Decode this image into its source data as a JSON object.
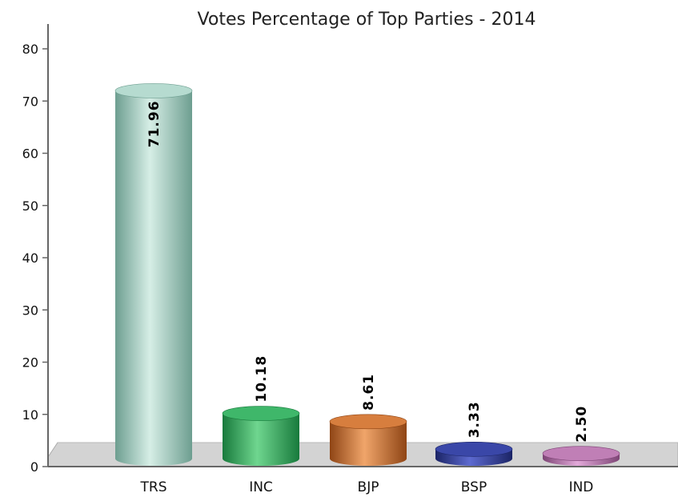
{
  "chart_data": {
    "type": "bar",
    "title": "Votes Percentage of Top Parties - 2014",
    "xlabel": "",
    "ylabel": "",
    "categories": [
      "TRS",
      "INC",
      "BJP",
      "BSP",
      "IND"
    ],
    "values": [
      71.96,
      10.18,
      8.61,
      3.33,
      2.5
    ],
    "value_labels": [
      "71.96",
      "10.18",
      "8.61",
      "3.33",
      "2.50"
    ],
    "ylim": [
      0,
      80
    ],
    "yticks": [
      "0",
      "10",
      "20",
      "30",
      "40",
      "50",
      "60",
      "70",
      "80"
    ],
    "grid": false,
    "legend": "none",
    "colors": [
      {
        "base": "#9cc9bb",
        "light": "#d6eee6",
        "dark": "#6d9e90",
        "top": "#b6dbd0"
      },
      {
        "base": "#2fa35a",
        "light": "#6fd68f",
        "dark": "#187a3c",
        "top": "#3fb76a"
      },
      {
        "base": "#c86a2c",
        "light": "#f0a56a",
        "dark": "#8f4515",
        "top": "#d77e3e"
      },
      {
        "base": "#2d3a93",
        "light": "#5d6ad0",
        "dark": "#1b2466",
        "top": "#3a47a8"
      },
      {
        "base": "#b06aa6",
        "light": "#e2a9d9",
        "dark": "#7d4475",
        "top": "#c07fb6"
      }
    ]
  }
}
